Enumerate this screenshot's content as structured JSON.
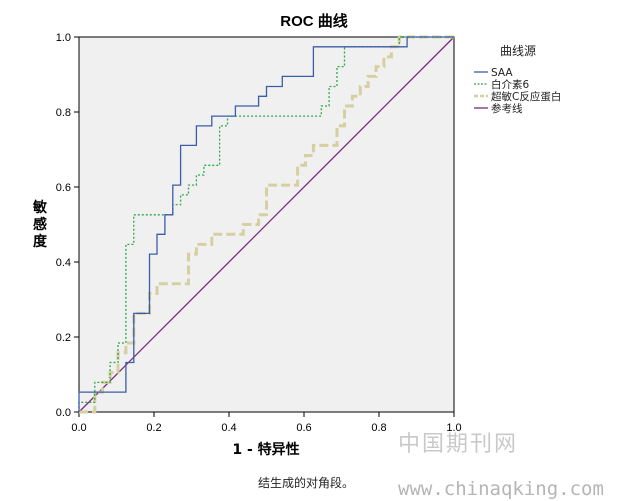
{
  "chart_data": {
    "type": "line",
    "title": "ROC 曲线",
    "xlabel": "1 - 特异性",
    "ylabel": "敏感度",
    "xlim": [
      0,
      1
    ],
    "ylim": [
      0,
      1
    ],
    "xticks": [
      "0.0",
      "0.2",
      "0.4",
      "0.6",
      "0.8",
      "1.0"
    ],
    "yticks": [
      "0.0",
      "0.2",
      "0.4",
      "0.6",
      "0.8",
      "1.0"
    ],
    "grid": false,
    "legend_title": "曲线源",
    "legend_position": "right",
    "series": [
      {
        "name": "SAA",
        "color": "#3b5ea8",
        "style": "solid",
        "points": [
          [
            0.0,
            0.0
          ],
          [
            0.0,
            0.053
          ],
          [
            0.125,
            0.053
          ],
          [
            0.125,
            0.132
          ],
          [
            0.146,
            0.132
          ],
          [
            0.146,
            0.263
          ],
          [
            0.188,
            0.263
          ],
          [
            0.188,
            0.421
          ],
          [
            0.208,
            0.421
          ],
          [
            0.208,
            0.474
          ],
          [
            0.229,
            0.474
          ],
          [
            0.229,
            0.526
          ],
          [
            0.25,
            0.526
          ],
          [
            0.25,
            0.605
          ],
          [
            0.271,
            0.605
          ],
          [
            0.271,
            0.711
          ],
          [
            0.313,
            0.711
          ],
          [
            0.313,
            0.763
          ],
          [
            0.354,
            0.763
          ],
          [
            0.354,
            0.789
          ],
          [
            0.417,
            0.789
          ],
          [
            0.417,
            0.816
          ],
          [
            0.479,
            0.816
          ],
          [
            0.479,
            0.842
          ],
          [
            0.5,
            0.842
          ],
          [
            0.5,
            0.868
          ],
          [
            0.542,
            0.868
          ],
          [
            0.542,
            0.895
          ],
          [
            0.625,
            0.895
          ],
          [
            0.625,
            0.974
          ],
          [
            0.875,
            0.974
          ],
          [
            0.875,
            1.0
          ],
          [
            1.0,
            1.0
          ]
        ]
      },
      {
        "name": "白介素6",
        "color": "#2ea84a",
        "style": "dotted",
        "points": [
          [
            0.0,
            0.0
          ],
          [
            0.0,
            0.026
          ],
          [
            0.042,
            0.026
          ],
          [
            0.042,
            0.079
          ],
          [
            0.083,
            0.079
          ],
          [
            0.083,
            0.132
          ],
          [
            0.104,
            0.132
          ],
          [
            0.104,
            0.184
          ],
          [
            0.125,
            0.184
          ],
          [
            0.125,
            0.447
          ],
          [
            0.146,
            0.447
          ],
          [
            0.146,
            0.526
          ],
          [
            0.25,
            0.526
          ],
          [
            0.25,
            0.553
          ],
          [
            0.271,
            0.553
          ],
          [
            0.271,
            0.579
          ],
          [
            0.292,
            0.579
          ],
          [
            0.292,
            0.605
          ],
          [
            0.313,
            0.605
          ],
          [
            0.313,
            0.632
          ],
          [
            0.333,
            0.632
          ],
          [
            0.333,
            0.658
          ],
          [
            0.375,
            0.658
          ],
          [
            0.375,
            0.763
          ],
          [
            0.396,
            0.763
          ],
          [
            0.396,
            0.789
          ],
          [
            0.646,
            0.789
          ],
          [
            0.646,
            0.816
          ],
          [
            0.667,
            0.816
          ],
          [
            0.667,
            0.868
          ],
          [
            0.688,
            0.868
          ],
          [
            0.688,
            0.921
          ],
          [
            0.708,
            0.921
          ],
          [
            0.708,
            0.974
          ],
          [
            0.854,
            0.974
          ],
          [
            0.854,
            1.0
          ],
          [
            1.0,
            1.0
          ]
        ]
      },
      {
        "name": "超敏C反应蛋白",
        "color": "#d6cfa0",
        "style": "dashed",
        "points": [
          [
            0.0,
            0.0
          ],
          [
            0.042,
            0.0
          ],
          [
            0.042,
            0.053
          ],
          [
            0.063,
            0.053
          ],
          [
            0.063,
            0.079
          ],
          [
            0.083,
            0.079
          ],
          [
            0.083,
            0.105
          ],
          [
            0.104,
            0.105
          ],
          [
            0.104,
            0.158
          ],
          [
            0.125,
            0.158
          ],
          [
            0.125,
            0.184
          ],
          [
            0.146,
            0.184
          ],
          [
            0.146,
            0.263
          ],
          [
            0.188,
            0.263
          ],
          [
            0.188,
            0.316
          ],
          [
            0.208,
            0.316
          ],
          [
            0.208,
            0.342
          ],
          [
            0.292,
            0.342
          ],
          [
            0.292,
            0.421
          ],
          [
            0.313,
            0.421
          ],
          [
            0.313,
            0.447
          ],
          [
            0.354,
            0.447
          ],
          [
            0.354,
            0.474
          ],
          [
            0.438,
            0.474
          ],
          [
            0.438,
            0.5
          ],
          [
            0.479,
            0.5
          ],
          [
            0.479,
            0.526
          ],
          [
            0.5,
            0.526
          ],
          [
            0.5,
            0.605
          ],
          [
            0.583,
            0.605
          ],
          [
            0.583,
            0.658
          ],
          [
            0.604,
            0.658
          ],
          [
            0.604,
            0.684
          ],
          [
            0.625,
            0.684
          ],
          [
            0.625,
            0.711
          ],
          [
            0.688,
            0.711
          ],
          [
            0.688,
            0.763
          ],
          [
            0.708,
            0.763
          ],
          [
            0.708,
            0.816
          ],
          [
            0.729,
            0.816
          ],
          [
            0.729,
            0.842
          ],
          [
            0.75,
            0.842
          ],
          [
            0.75,
            0.868
          ],
          [
            0.771,
            0.868
          ],
          [
            0.771,
            0.895
          ],
          [
            0.792,
            0.895
          ],
          [
            0.792,
            0.921
          ],
          [
            0.813,
            0.921
          ],
          [
            0.813,
            0.947
          ],
          [
            0.833,
            0.947
          ],
          [
            0.833,
            0.974
          ],
          [
            0.854,
            0.974
          ],
          [
            0.854,
            1.0
          ],
          [
            1.0,
            1.0
          ]
        ]
      },
      {
        "name": "参考线",
        "color": "#7a2a82",
        "style": "solid",
        "points": [
          [
            0.0,
            0.0
          ],
          [
            1.0,
            1.0
          ]
        ]
      }
    ]
  },
  "caption": "结生成的对角段。",
  "watermark": {
    "site_cn": "中国期刊网",
    "url": "www.chinaqking.com"
  }
}
